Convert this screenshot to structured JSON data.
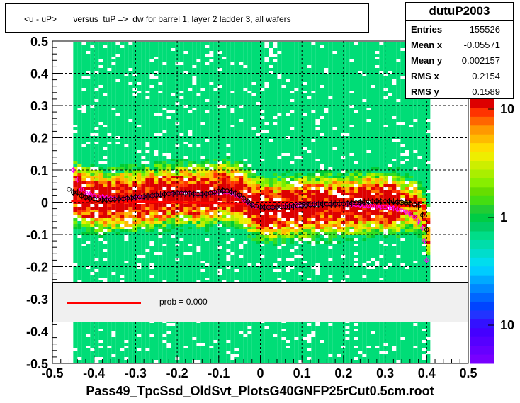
{
  "title": "<u - uP>       versus  tuP =>  dw for barrel 1, layer 2 ladder 3, all wafers",
  "stats": {
    "name": "dutuP2003",
    "rows": [
      {
        "label": "Entries",
        "value": "155526"
      },
      {
        "label": "Mean x",
        "value": "-0.05571"
      },
      {
        "label": "Mean y",
        "value": "0.002157"
      },
      {
        "label": "RMS x",
        "value": "0.2154"
      },
      {
        "label": "RMS y",
        "value": "0.1589"
      }
    ]
  },
  "legend": {
    "label": "prob = 0.000"
  },
  "xaxis_title": "Pass49_TpcSsd_OldSvt_PlotsG40GNFP25rCut0.5cm.root",
  "chart_data": {
    "type": "heatmap",
    "title": "<u - uP>       versus  tuP =>  dw for barrel 1, layer 2 ladder 3, all wafers",
    "xlim": [
      -0.5,
      0.5
    ],
    "ylim": [
      -0.5,
      0.5
    ],
    "xticks": [
      "-0.5",
      "-0.4",
      "-0.3",
      "-0.2",
      "-0.1",
      "0",
      "0.1",
      "0.2",
      "0.3",
      "0.4",
      "0.5"
    ],
    "yticks": [
      "-0.5",
      "-0.4",
      "-0.3",
      "-0.2",
      "-0.1",
      "0",
      "0.1",
      "0.2",
      "0.3",
      "0.4",
      "0.5"
    ],
    "grid": true,
    "color_scale": {
      "type": "log",
      "labels": [
        "10",
        "1",
        "10"
      ]
    },
    "profile_black": {
      "x": [
        -0.46,
        -0.45,
        -0.44,
        -0.43,
        -0.42,
        -0.41,
        -0.4,
        -0.39,
        -0.38,
        -0.37,
        -0.36,
        -0.35,
        -0.34,
        -0.33,
        -0.32,
        -0.31,
        -0.3,
        -0.29,
        -0.28,
        -0.27,
        -0.26,
        -0.25,
        -0.24,
        -0.23,
        -0.22,
        -0.21,
        -0.2,
        -0.19,
        -0.18,
        -0.17,
        -0.16,
        -0.15,
        -0.14,
        -0.13,
        -0.12,
        -0.11,
        -0.1,
        -0.09,
        -0.08,
        -0.07,
        -0.06,
        -0.05,
        -0.04,
        -0.03,
        -0.02,
        -0.01,
        0.0,
        0.01,
        0.02,
        0.03,
        0.04,
        0.05,
        0.06,
        0.07,
        0.08,
        0.09,
        0.1,
        0.11,
        0.12,
        0.13,
        0.14,
        0.15,
        0.16,
        0.17,
        0.18,
        0.19,
        0.2,
        0.21,
        0.22,
        0.23,
        0.24,
        0.25,
        0.26,
        0.27,
        0.28,
        0.29,
        0.3,
        0.31,
        0.32,
        0.33,
        0.34,
        0.35,
        0.36,
        0.37,
        0.38,
        0.39,
        0.4
      ],
      "y": [
        0.04,
        0.03,
        0.03,
        0.02,
        0.015,
        0.012,
        0.01,
        0.008,
        0.007,
        0.007,
        0.008,
        0.009,
        0.01,
        0.01,
        0.012,
        0.013,
        0.015,
        0.016,
        0.017,
        0.019,
        0.02,
        0.022,
        0.023,
        0.025,
        0.026,
        0.027,
        0.028,
        0.028,
        0.028,
        0.027,
        0.026,
        0.025,
        0.025,
        0.026,
        0.028,
        0.031,
        0.034,
        0.036,
        0.035,
        0.032,
        0.028,
        0.022,
        0.012,
        0.002,
        -0.008,
        -0.012,
        -0.015,
        -0.016,
        -0.016,
        -0.016,
        -0.015,
        -0.014,
        -0.014,
        -0.013,
        -0.012,
        -0.011,
        -0.01,
        -0.009,
        -0.008,
        -0.008,
        -0.007,
        -0.007,
        -0.006,
        -0.006,
        -0.006,
        -0.005,
        -0.005,
        -0.004,
        -0.003,
        -0.002,
        -0.001,
        0.0,
        0.001,
        0.002,
        0.002,
        0.002,
        0.002,
        0.002,
        0.001,
        0.0,
        -0.001,
        -0.002,
        -0.004,
        -0.007,
        -0.012,
        -0.04,
        -0.085
      ]
    },
    "profile_magenta": {
      "x": [
        -0.45,
        -0.44,
        -0.43,
        -0.42,
        -0.41,
        -0.4,
        -0.39,
        -0.38,
        -0.37,
        -0.36,
        -0.35,
        -0.34,
        -0.33,
        -0.32,
        -0.31,
        -0.3,
        -0.29,
        -0.28,
        -0.27,
        -0.26,
        -0.25,
        -0.24,
        -0.23,
        -0.22,
        -0.21,
        -0.2,
        -0.19,
        -0.18,
        -0.17,
        -0.16,
        -0.15,
        -0.14,
        -0.13,
        -0.12,
        -0.11,
        -0.1,
        -0.09,
        -0.08,
        -0.07,
        -0.06,
        -0.05,
        -0.04,
        -0.03,
        -0.02,
        -0.01,
        0.0,
        0.01,
        0.02,
        0.03,
        0.04,
        0.05,
        0.06,
        0.07,
        0.08,
        0.09,
        0.1,
        0.11,
        0.12,
        0.13,
        0.14,
        0.15,
        0.16,
        0.17,
        0.18,
        0.19,
        0.2,
        0.21,
        0.22,
        0.23,
        0.24,
        0.25,
        0.26,
        0.27,
        0.28,
        0.29,
        0.3,
        0.31,
        0.32,
        0.33,
        0.34,
        0.35,
        0.36,
        0.37,
        0.38,
        0.39,
        0.395,
        0.4
      ],
      "y": [
        0.1,
        0.07,
        0.04,
        0.03,
        0.025,
        0.02,
        0.018,
        0.016,
        0.014,
        0.012,
        0.011,
        0.01,
        0.01,
        0.011,
        0.012,
        0.013,
        0.014,
        0.016,
        0.018,
        0.02,
        0.022,
        0.024,
        0.025,
        0.026,
        0.026,
        0.027,
        0.027,
        0.027,
        0.026,
        0.025,
        0.024,
        0.024,
        0.025,
        0.027,
        0.029,
        0.031,
        0.032,
        0.031,
        0.028,
        0.024,
        0.018,
        0.008,
        -0.002,
        -0.01,
        -0.014,
        -0.016,
        -0.016,
        -0.016,
        -0.015,
        -0.014,
        -0.013,
        -0.012,
        -0.011,
        -0.01,
        -0.009,
        -0.008,
        -0.007,
        -0.007,
        -0.006,
        -0.006,
        -0.006,
        -0.006,
        -0.006,
        -0.006,
        -0.006,
        -0.006,
        -0.006,
        -0.007,
        -0.008,
        -0.009,
        -0.01,
        -0.011,
        -0.012,
        -0.013,
        -0.014,
        -0.015,
        -0.017,
        -0.019,
        -0.022,
        -0.026,
        -0.03,
        -0.036,
        -0.045,
        -0.06,
        -0.08,
        -0.12,
        -0.18
      ]
    },
    "fit_line": {
      "x": [
        -0.455,
        0.4
      ],
      "y": [
        0.004,
        -0.012
      ],
      "color": "#ff0000"
    }
  }
}
